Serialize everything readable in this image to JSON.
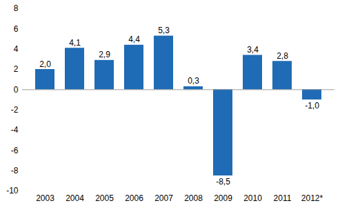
{
  "chart_data": {
    "type": "bar",
    "categories": [
      "2003",
      "2004",
      "2005",
      "2006",
      "2007",
      "2008",
      "2009",
      "2010",
      "2011",
      "2012*"
    ],
    "values": [
      2.0,
      4.1,
      2.9,
      4.4,
      5.3,
      0.3,
      -8.5,
      3.4,
      2.8,
      -1.0
    ],
    "value_labels": [
      "2,0",
      "4,1",
      "2,9",
      "4,4",
      "5,3",
      "0,3",
      "-8,5",
      "3,4",
      "2,8",
      "-1,0"
    ],
    "color": "#1f6bb5",
    "ylim": [
      -10,
      8
    ],
    "yticks": [
      -10,
      -8,
      -6,
      -4,
      -2,
      0,
      2,
      4,
      6,
      8
    ],
    "grid": false,
    "data_labels": true
  }
}
